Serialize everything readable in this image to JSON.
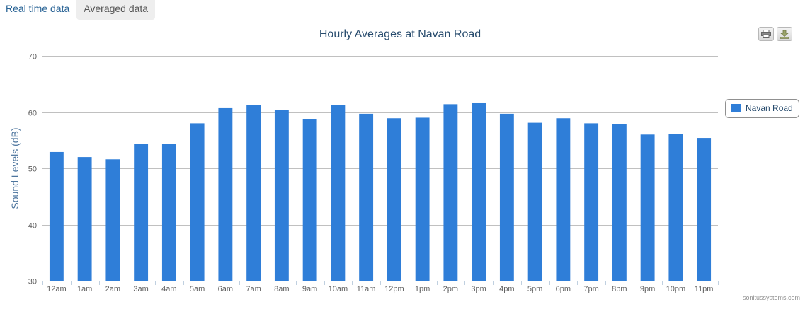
{
  "tabs": [
    {
      "label": "Real time data",
      "active": false
    },
    {
      "label": "Averaged data",
      "active": true
    }
  ],
  "credits": "sonitussystems.com",
  "colors": {
    "bar": "#2f7ed8",
    "grid": "#c0c0c0",
    "axis_label": "#4d759e",
    "title": "#274b6d",
    "tick": "#606060"
  },
  "chart_data": {
    "type": "bar",
    "title": "Hourly Averages at Navan Road",
    "ylabel": "Sound Levels (dB)",
    "xlabel": "",
    "ylim": [
      30,
      70
    ],
    "yticks": [
      30,
      40,
      50,
      60,
      70
    ],
    "grid": true,
    "legend_position": "right",
    "categories": [
      "12am",
      "1am",
      "2am",
      "3am",
      "4am",
      "5am",
      "6am",
      "7am",
      "8am",
      "9am",
      "10am",
      "11am",
      "12pm",
      "1pm",
      "2pm",
      "3pm",
      "4pm",
      "5pm",
      "6pm",
      "7pm",
      "8pm",
      "9pm",
      "10pm",
      "11pm"
    ],
    "series": [
      {
        "name": "Navan Road",
        "values": [
          52.9,
          52.0,
          51.6,
          54.4,
          54.4,
          58.0,
          60.7,
          61.3,
          60.4,
          58.8,
          61.2,
          59.7,
          58.9,
          59.0,
          61.4,
          61.7,
          59.7,
          58.1,
          58.9,
          58.0,
          57.8,
          56.0,
          56.1,
          55.4
        ]
      }
    ]
  }
}
